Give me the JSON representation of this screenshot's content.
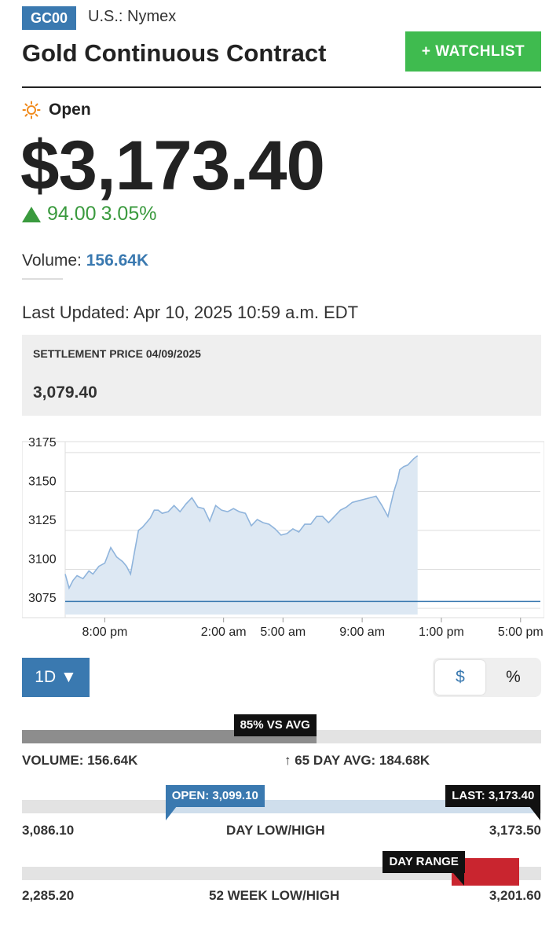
{
  "header": {
    "ticker": "GC00",
    "exchange": "U.S.: Nymex",
    "title": "Gold Continuous Contract",
    "watchlist_label": "+ WATCHLIST"
  },
  "market_status": {
    "label": "Open",
    "icon": "sun-icon"
  },
  "quote": {
    "price": "$3,173.40",
    "change": "94.00",
    "change_pct": "3.05%",
    "direction": "up",
    "color": "#3a9a3e"
  },
  "volume": {
    "label": "Volume:",
    "value": "156.64K"
  },
  "last_updated": "Last Updated: Apr 10, 2025 10:59 a.m. EDT",
  "settlement": {
    "label": "SETTLEMENT PRICE 04/09/2025",
    "value": "3,079.40"
  },
  "chart_data": {
    "type": "area",
    "title": "",
    "xlabel": "",
    "ylabel": "",
    "ylim": [
      3071,
      3180
    ],
    "yticks": [
      3175,
      3150,
      3125,
      3100,
      3075
    ],
    "xticks": [
      "8:00 pm",
      "2:00 am",
      "5:00 am",
      "9:00 am",
      "1:00 pm",
      "5:00 pm"
    ],
    "xtick_hours": [
      20,
      26,
      29,
      33,
      37,
      41
    ],
    "x_range_hours": [
      18,
      42
    ],
    "grid": true,
    "baseline": 3079.4,
    "series": [
      {
        "x": [
          18.0,
          18.2,
          18.4,
          18.6,
          18.9,
          19.2,
          19.4,
          19.7,
          20.0,
          20.3,
          20.6,
          20.9,
          21.1,
          21.3,
          21.5,
          21.7,
          21.9,
          22.1,
          22.3,
          22.5,
          22.7,
          22.9,
          23.2,
          23.5,
          23.8,
          24.1,
          24.4,
          24.7,
          25.0,
          25.3,
          25.6,
          25.9,
          26.2,
          26.5,
          26.8,
          27.1,
          27.4,
          27.7,
          28.0,
          28.3,
          28.6,
          28.9,
          29.2,
          29.5,
          29.8,
          30.1,
          30.4,
          30.7,
          31.0,
          31.3,
          31.6,
          31.9,
          32.2,
          32.5,
          32.8,
          33.1,
          33.4,
          33.7,
          34.0,
          34.3,
          34.6,
          34.8,
          34.9,
          35.1,
          35.3,
          35.6,
          35.8
        ],
        "y": [
          3097,
          3088,
          3093,
          3096,
          3094,
          3099,
          3097,
          3102,
          3104,
          3114,
          3108,
          3105,
          3102,
          3097,
          3111,
          3125,
          3127,
          3130,
          3133,
          3138,
          3138,
          3136,
          3137,
          3141,
          3137,
          3142,
          3146,
          3140,
          3139,
          3131,
          3141,
          3138,
          3137,
          3139,
          3137,
          3136,
          3128,
          3132,
          3130,
          3129,
          3126,
          3122,
          3123,
          3126,
          3124,
          3129,
          3129,
          3134,
          3134,
          3130,
          3134,
          3138,
          3140,
          3143,
          3144,
          3145,
          3146,
          3147,
          3141,
          3134,
          3150,
          3158,
          3164,
          3166,
          3167,
          3171,
          3173
        ]
      }
    ]
  },
  "controls": {
    "period": "1D ▼",
    "toggle_dollar": "$",
    "toggle_pct": "%"
  },
  "volume_bar": {
    "fill_fraction": 0.85,
    "tag": "85% VS AVG",
    "left_label": "VOLUME: 156.64K",
    "right_label": "↑ 65 DAY AVG: 184.68K"
  },
  "day_range": {
    "open_tag": "OPEN: 3,099.10",
    "last_tag": "LAST: 3,173.40",
    "low": "3,086.10",
    "center_label": "DAY LOW/HIGH",
    "high": "3,173.50",
    "low_value": 3086.1,
    "high_value": 3173.5,
    "open_value": 3099.1,
    "last_value": 3173.4
  },
  "week52": {
    "tag": "DAY RANGE",
    "low": "2,285.20",
    "center_label": "52 WEEK LOW/HIGH",
    "high": "3,201.60",
    "low_value": 2285.2,
    "high_value": 3201.6,
    "range_low_value": 3086.1,
    "range_high_value": 3173.5,
    "marker_color": "#c9252f"
  }
}
